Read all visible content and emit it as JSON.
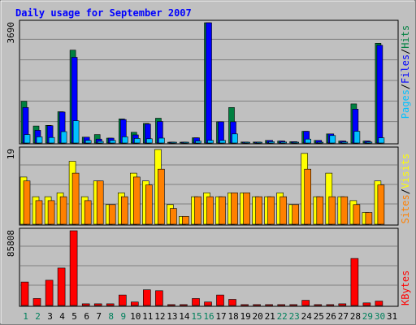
{
  "chart_data": {
    "type": "bar",
    "title": "Daily usage for September 2007",
    "days": [
      "1",
      "2",
      "3",
      "4",
      "5",
      "6",
      "7",
      "8",
      "9",
      "10",
      "11",
      "12",
      "13",
      "14",
      "15",
      "16",
      "17",
      "18",
      "19",
      "20",
      "21",
      "22",
      "23",
      "24",
      "25",
      "26",
      "27",
      "28",
      "29",
      "30",
      "31"
    ],
    "weekend_days": [
      "1",
      "2",
      "8",
      "9",
      "15",
      "16",
      "22",
      "23",
      "29",
      "30"
    ],
    "panels": [
      {
        "id": "hits",
        "max_label": "3690",
        "max": 3690,
        "labels": [
          "Pages",
          "Files",
          "Hits"
        ],
        "series": [
          {
            "name": "Hits",
            "color": "#008040",
            "values": [
              1280,
              520,
              540,
              960,
              2850,
              180,
              260,
              150,
              740,
              330,
              600,
              760,
              20,
              20,
              160,
              3690,
              650,
              1090,
              30,
              30,
              80,
              60,
              40,
              360,
              80,
              280,
              60,
              1200,
              60,
              3060,
              0
            ]
          },
          {
            "name": "Files",
            "color": "#0000ff",
            "values": [
              1090,
              390,
              530,
              950,
              2630,
              180,
              120,
              150,
              720,
              250,
              580,
              660,
              20,
              20,
              160,
              3690,
              650,
              650,
              30,
              30,
              80,
              60,
              40,
              360,
              80,
              280,
              60,
              1040,
              60,
              3000,
              0
            ]
          },
          {
            "name": "Pages",
            "color": "#00c0ff",
            "values": [
              260,
              190,
              170,
              350,
              680,
              80,
              50,
              80,
              190,
              140,
              130,
              150,
              10,
              10,
              60,
              80,
              80,
              280,
              10,
              10,
              40,
              30,
              20,
              120,
              20,
              230,
              30,
              360,
              30,
              160,
              0
            ]
          }
        ]
      },
      {
        "id": "visits",
        "max_label": "19",
        "max": 19,
        "labels": [
          "Sites",
          "Visits"
        ],
        "series": [
          {
            "name": "Visits",
            "color": "#ffff00",
            "values": [
              12,
              7,
              7,
              8,
              16,
              7,
              11,
              5,
              8,
              13,
              11,
              19,
              5,
              2,
              7,
              8,
              7,
              8,
              8,
              7,
              7,
              8,
              5,
              18,
              7,
              13,
              7,
              6,
              3,
              11,
              0
            ]
          },
          {
            "name": "Sites",
            "color": "#ff8000",
            "values": [
              11,
              6,
              6,
              7,
              13,
              6,
              11,
              5,
              7,
              12,
              10,
              14,
              4,
              2,
              7,
              7,
              7,
              8,
              8,
              7,
              7,
              7,
              5,
              14,
              7,
              7,
              7,
              5,
              3,
              10,
              0
            ]
          }
        ]
      },
      {
        "id": "kbytes",
        "max_label": "85808",
        "max": 85808,
        "labels": [
          "KBytes"
        ],
        "series": [
          {
            "name": "KBytes",
            "color": "#ff0000",
            "values": [
              27000,
              8000,
              29000,
              43000,
              85808,
              2000,
              2000,
              2000,
              12000,
              4000,
              18000,
              17000,
              1000,
              1000,
              8000,
              4000,
              12000,
              7000,
              1000,
              1000,
              1000,
              1000,
              1000,
              6000,
              1000,
              1000,
              2000,
              54000,
              3000,
              5000,
              0
            ]
          }
        ]
      }
    ]
  }
}
